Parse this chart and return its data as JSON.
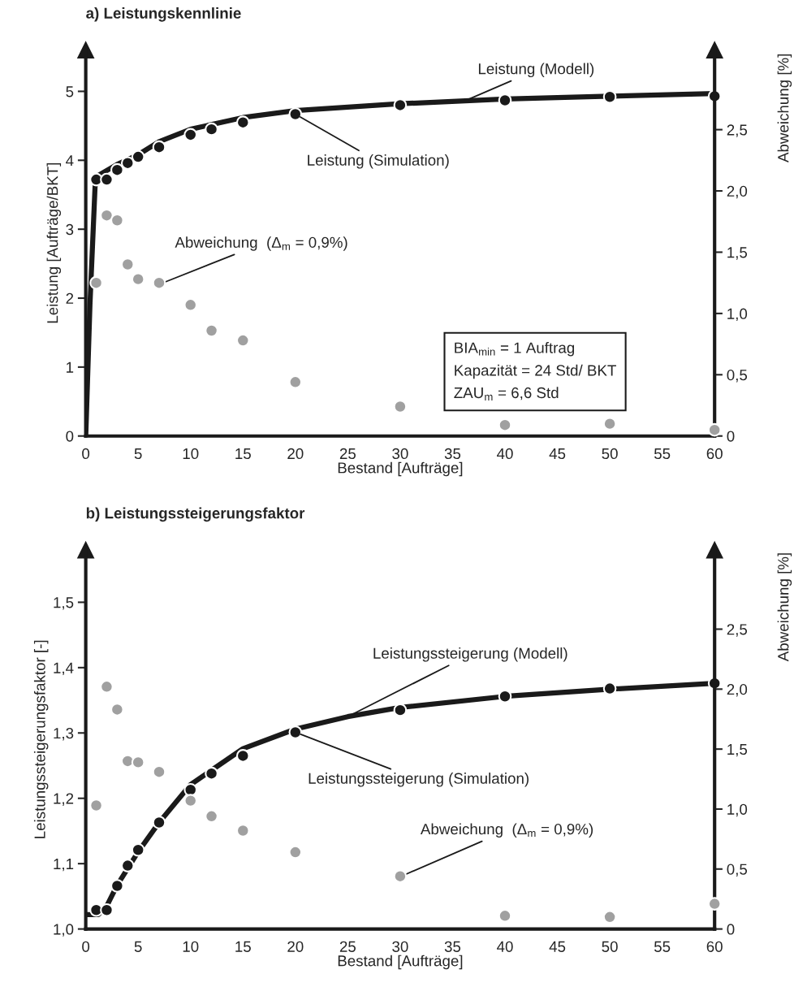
{
  "chart_data": [
    {
      "type": "line",
      "title": "a) Leistungskennlinie",
      "xlabel": "Bestand [Aufträge]",
      "ylabel": "Leistung [Aufträge/BKT]",
      "y2label": "Abweichung [%]",
      "xlim": [
        0,
        60
      ],
      "xticks": [
        0,
        5,
        10,
        15,
        20,
        25,
        30,
        35,
        40,
        45,
        50,
        55,
        60
      ],
      "ylim": [
        0,
        5.6
      ],
      "yticks": [
        0,
        1,
        2,
        3,
        4,
        5
      ],
      "y2lim": [
        0,
        3.15
      ],
      "y2ticks": [
        0,
        {
          "value": 0.5,
          "label": "0,5"
        },
        {
          "value": 1.0,
          "label": "1,0"
        },
        {
          "value": 1.5,
          "label": "1,5"
        },
        {
          "value": 2.0,
          "label": "2,0"
        },
        {
          "value": 2.5,
          "label": "2,5"
        }
      ],
      "grid": false,
      "legend": false,
      "series": [
        {
          "color": "#1a1a1a",
          "x": [
            0,
            0.4,
            0.9,
            1.2,
            3,
            5,
            7,
            10,
            15,
            20,
            30,
            40,
            50,
            60
          ],
          "values": [
            0,
            1.9,
            3.66,
            3.78,
            3.94,
            4.08,
            4.27,
            4.45,
            4.62,
            4.72,
            4.82,
            4.89,
            4.93,
            4.97
          ]
        },
        {
          "type": "scatter",
          "color": "#1a1a1a",
          "marker": "circle",
          "x": [
            1,
            2,
            3,
            4,
            5,
            7,
            10,
            12,
            15,
            20,
            30,
            40,
            50,
            60
          ],
          "values": [
            3.72,
            3.72,
            3.86,
            3.96,
            4.05,
            4.19,
            4.37,
            4.45,
            4.55,
            4.67,
            4.8,
            4.87,
            4.92,
            4.93
          ]
        },
        {
          "type": "scatter",
          "color": "#a0a0a0",
          "marker": "circle",
          "axis": "y2",
          "x": [
            1,
            2,
            3,
            4,
            5,
            7,
            10,
            12,
            15,
            20,
            30,
            40,
            50,
            60
          ],
          "values": [
            1.25,
            1.8,
            1.76,
            1.4,
            1.28,
            1.25,
            1.07,
            0.86,
            0.78,
            0.44,
            0.24,
            0.09,
            0.1,
            0.05
          ]
        }
      ],
      "annotations": [
        {
          "text": "Leistung (Modell)",
          "x": 36,
          "y": 4.85
        },
        {
          "text": "Leistung (Simulation)",
          "x": 20,
          "y": 4.67
        },
        {
          "text": "Abweichung  (Δ$_{m}$ = 0,9%)",
          "x": 7,
          "y": 2.2
        },
        "BIA$_{min}$ = 1 Auftrag",
        "Kapazität = 24 Std/ BKT",
        "ZAU$_{m}$ = 6,6 Std"
      ]
    },
    {
      "type": "line",
      "title": "b) Leistungssteigerungsfaktor",
      "xlabel": "Bestand [Aufträge]",
      "ylabel": "Leistungssteigerungsfaktor [-]",
      "y2label": "Abweichung [%]",
      "xlim": [
        0,
        60
      ],
      "xticks": [
        0,
        5,
        10,
        15,
        20,
        25,
        30,
        35,
        40,
        45,
        50,
        55,
        60
      ],
      "ylim": [
        1.0,
        1.58
      ],
      "yticks": [
        {
          "value": 1.0,
          "label": "1,0"
        },
        {
          "value": 1.1,
          "label": "1,1"
        },
        {
          "value": 1.2,
          "label": "1,2"
        },
        {
          "value": 1.3,
          "label": "1,3"
        },
        {
          "value": 1.4,
          "label": "1,4"
        },
        {
          "value": 1.5,
          "label": "1,5"
        }
      ],
      "y2lim": [
        0,
        3.16
      ],
      "y2ticks": [
        0,
        {
          "value": 0.5,
          "label": "0,5"
        },
        {
          "value": 1.0,
          "label": "1,0"
        },
        {
          "value": 1.5,
          "label": "1,5"
        },
        {
          "value": 2.0,
          "label": "2,0"
        },
        {
          "value": 2.5,
          "label": "2,5"
        }
      ],
      "grid": false,
      "legend": false,
      "series": [
        {
          "color": "#1a1a1a",
          "x": [
            0,
            1.2,
            2,
            3,
            5,
            7,
            10,
            15,
            20,
            25,
            30,
            40,
            50,
            60
          ],
          "values": [
            1.022,
            1.022,
            1.035,
            1.067,
            1.118,
            1.163,
            1.221,
            1.276,
            1.306,
            1.325,
            1.339,
            1.356,
            1.367,
            1.376
          ]
        },
        {
          "type": "scatter",
          "color": "#1a1a1a",
          "marker": "circle",
          "x": [
            1,
            2,
            3,
            4,
            5,
            7,
            10,
            12,
            15,
            20,
            30,
            40,
            50,
            60
          ],
          "values": [
            1.029,
            1.029,
            1.066,
            1.097,
            1.121,
            1.163,
            1.213,
            1.238,
            1.265,
            1.301,
            1.335,
            1.356,
            1.368,
            1.376
          ]
        },
        {
          "type": "scatter",
          "color": "#a0a0a0",
          "marker": "circle",
          "axis": "y2",
          "x": [
            1,
            2,
            3,
            4,
            5,
            7,
            10,
            12,
            15,
            20,
            30,
            40,
            50,
            60
          ],
          "values": [
            1.03,
            2.02,
            1.83,
            1.4,
            1.39,
            1.31,
            1.07,
            0.94,
            0.82,
            0.64,
            0.44,
            0.11,
            0.1,
            0.21
          ]
        }
      ],
      "annotations": [
        {
          "text": "Leistungssteigerung (Modell)",
          "x": 25,
          "y": 1.325
        },
        {
          "text": "Leistungssteigerung (Simulation)",
          "x": 20,
          "y": 1.301
        },
        {
          "text": "Abweichung  (Δ$_{m}$ = 0,9%)",
          "x": 30,
          "y": 1.08
        }
      ]
    }
  ]
}
